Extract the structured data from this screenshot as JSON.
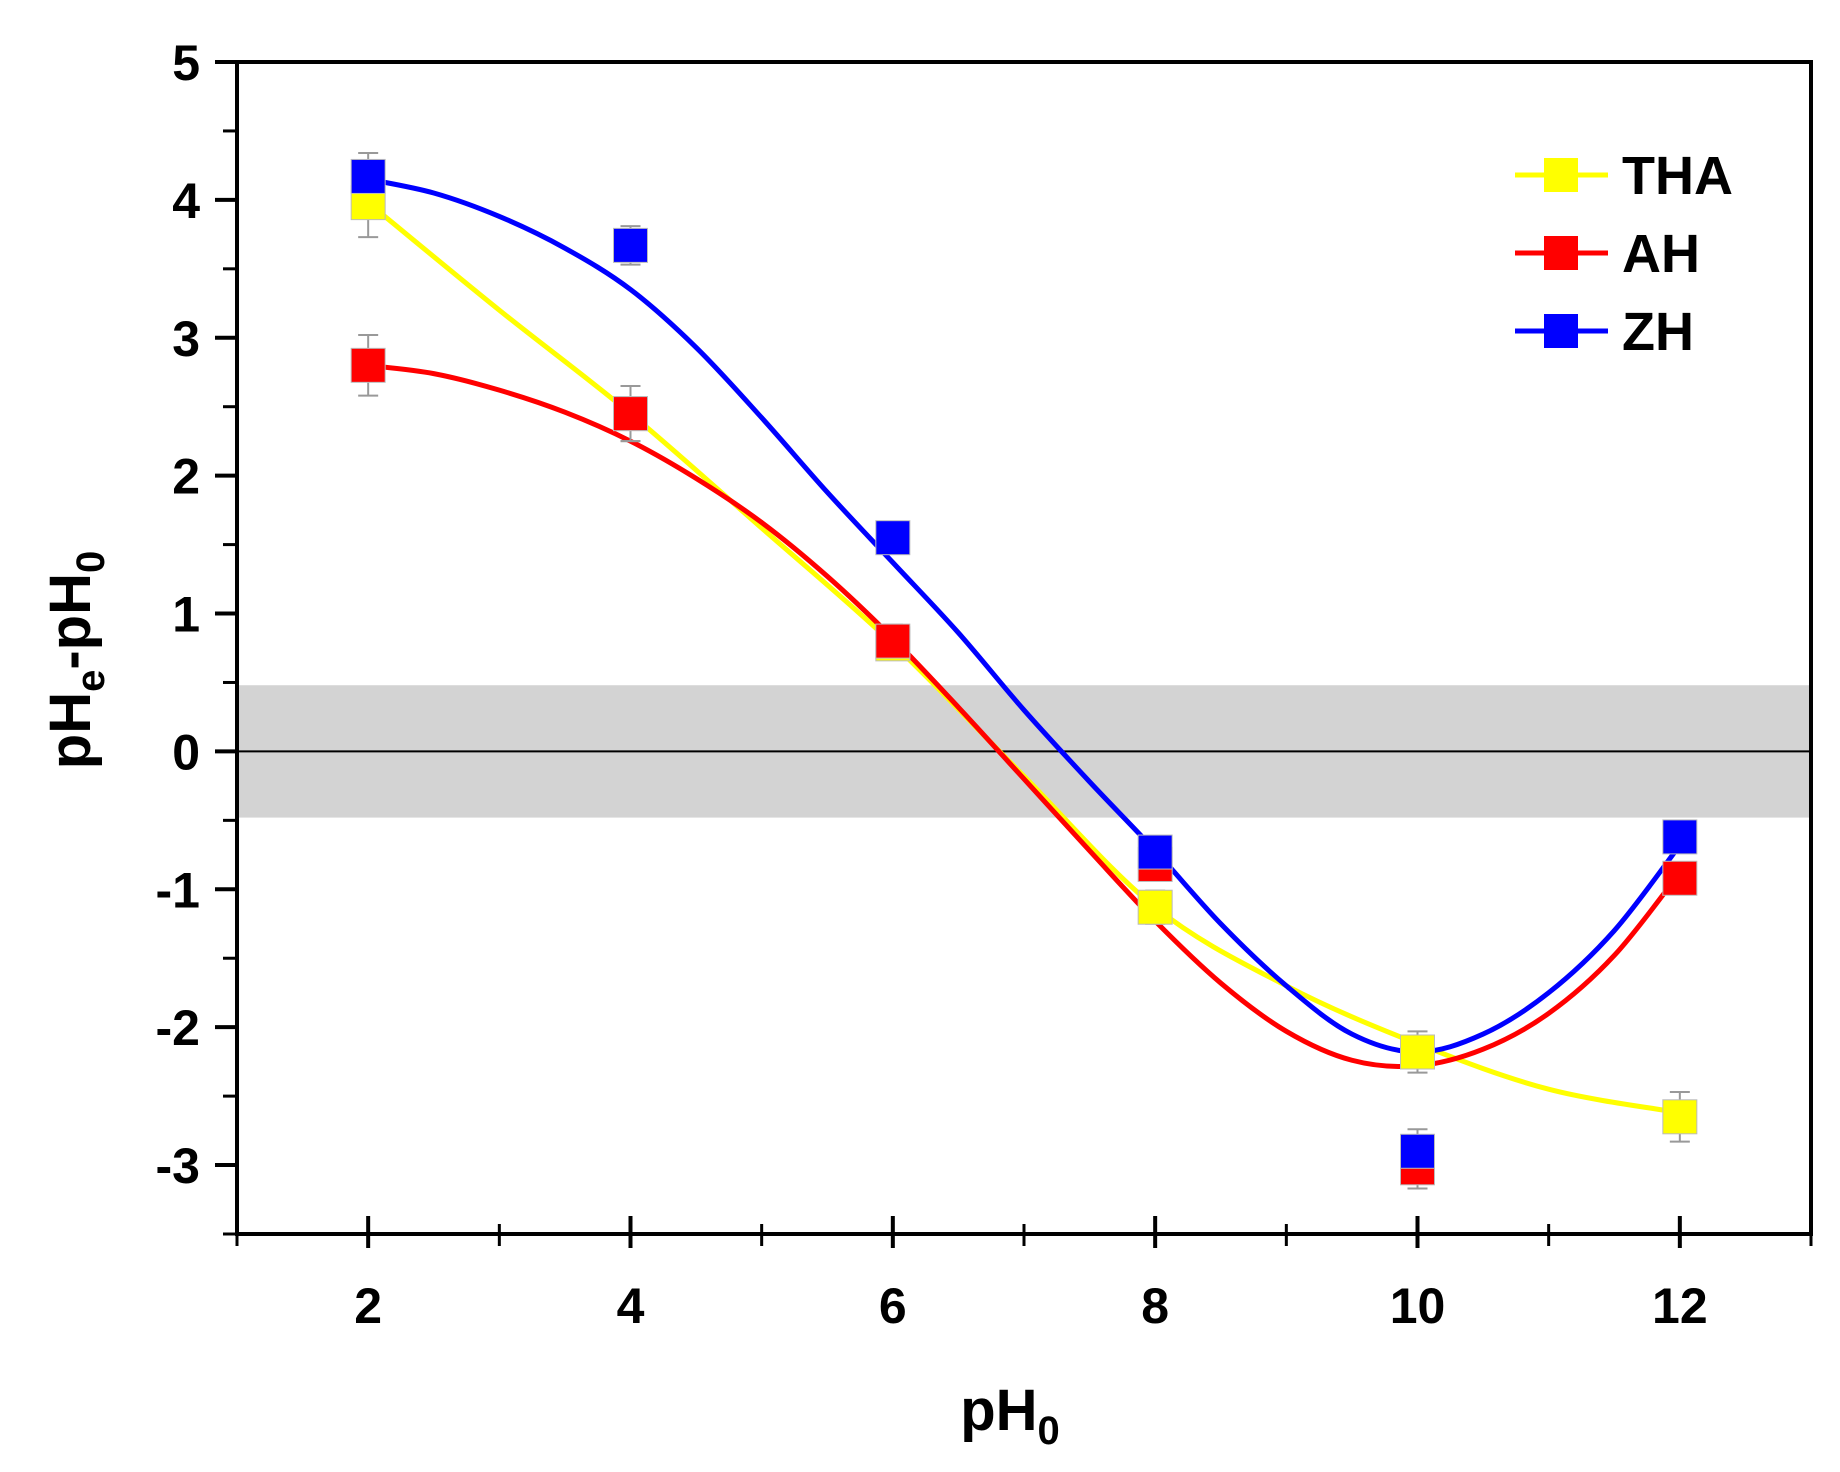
{
  "chart_data": {
    "type": "scatter",
    "title": "",
    "xlabel": {
      "main": "pH",
      "sub": "0"
    },
    "ylabel": {
      "part1": "pH",
      "sub1": "e",
      "part2": "-pH",
      "sub2": "0"
    },
    "xlim": [
      1,
      13
    ],
    "ylim": [
      -3.5,
      5
    ],
    "x_major_ticks": [
      2,
      4,
      6,
      8,
      10,
      12
    ],
    "x_minor_ticks": [
      1,
      3,
      5,
      7,
      9,
      11,
      13
    ],
    "y_major_ticks": [
      -3,
      -2,
      -1,
      0,
      1,
      2,
      3,
      4,
      5
    ],
    "y_minor_ticks": [
      -3.5,
      -2.5,
      -1.5,
      -0.5,
      0.5,
      1.5,
      2.5,
      3.5,
      4.5
    ],
    "x_tick_labels": [
      "2",
      "4",
      "6",
      "8",
      "10",
      "12"
    ],
    "y_tick_labels": [
      "-3",
      "-2",
      "-1",
      "0",
      "1",
      "2",
      "3",
      "4",
      "5"
    ],
    "band": {
      "from": -0.48,
      "to": 0.48,
      "color": "#d3d3d3"
    },
    "zero_line": 0,
    "legend_position": "top-right",
    "series": [
      {
        "name": "THA",
        "color": "#ffff00",
        "x": [
          2,
          4,
          6,
          8,
          10,
          12
        ],
        "y": [
          3.98,
          2.45,
          0.78,
          -1.13,
          -2.18,
          -2.65
        ],
        "err": [
          0.25,
          0.2,
          0.1,
          0.12,
          0.15,
          0.18
        ],
        "fit": [
          [
            2,
            3.98
          ],
          [
            3,
            3.2
          ],
          [
            4,
            2.45
          ],
          [
            5,
            1.62
          ],
          [
            6,
            0.78
          ],
          [
            7,
            -0.18
          ],
          [
            8,
            -1.13
          ],
          [
            9,
            -1.7
          ],
          [
            10,
            -2.12
          ],
          [
            11,
            -2.45
          ],
          [
            12,
            -2.62
          ]
        ]
      },
      {
        "name": "AH",
        "color": "#ff0000",
        "x": [
          2,
          4,
          6,
          8,
          10,
          12
        ],
        "y": [
          2.8,
          2.45,
          0.8,
          -0.82,
          -3.02,
          -0.92
        ],
        "err": [
          0.22,
          0.2,
          0.12,
          0.1,
          0.15,
          0.1
        ],
        "fit": [
          [
            2,
            2.8
          ],
          [
            2.5,
            2.74
          ],
          [
            3,
            2.62
          ],
          [
            3.5,
            2.46
          ],
          [
            4,
            2.25
          ],
          [
            4.5,
            1.98
          ],
          [
            5,
            1.66
          ],
          [
            5.5,
            1.27
          ],
          [
            6,
            0.82
          ],
          [
            6.5,
            0.32
          ],
          [
            7,
            -0.2
          ],
          [
            7.5,
            -0.72
          ],
          [
            8,
            -1.23
          ],
          [
            8.5,
            -1.68
          ],
          [
            9,
            -2.03
          ],
          [
            9.5,
            -2.24
          ],
          [
            10,
            -2.28
          ],
          [
            10.5,
            -2.16
          ],
          [
            11,
            -1.9
          ],
          [
            11.5,
            -1.48
          ],
          [
            12,
            -0.88
          ]
        ]
      },
      {
        "name": "ZH",
        "color": "#0000ff",
        "x": [
          2,
          4,
          6,
          8,
          10,
          12
        ],
        "y": [
          4.17,
          3.67,
          1.55,
          -0.73,
          -2.9,
          -0.62
        ],
        "err": [
          0.17,
          0.14,
          0.1,
          0.1,
          0.16,
          0.1
        ],
        "fit": [
          [
            2,
            4.15
          ],
          [
            2.5,
            4.05
          ],
          [
            3,
            3.88
          ],
          [
            3.5,
            3.65
          ],
          [
            4,
            3.35
          ],
          [
            4.5,
            2.93
          ],
          [
            5,
            2.42
          ],
          [
            5.5,
            1.88
          ],
          [
            6,
            1.37
          ],
          [
            6.5,
            0.86
          ],
          [
            7,
            0.3
          ],
          [
            7.5,
            -0.22
          ],
          [
            8,
            -0.72
          ],
          [
            8.5,
            -1.25
          ],
          [
            9,
            -1.7
          ],
          [
            9.5,
            -2.05
          ],
          [
            10,
            -2.18
          ],
          [
            10.5,
            -2.05
          ],
          [
            11,
            -1.75
          ],
          [
            11.5,
            -1.3
          ],
          [
            12,
            -0.68
          ]
        ]
      }
    ]
  }
}
